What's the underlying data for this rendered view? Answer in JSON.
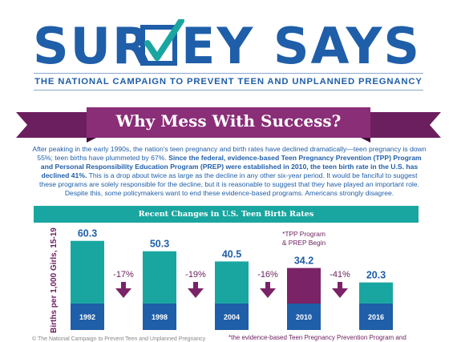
{
  "header": {
    "logo_left": "SUR",
    "logo_right": "EY SAYS",
    "subtitle": "THE NATIONAL CAMPAIGN TO PREVENT TEEN AND UNPLANNED PREGNANCY"
  },
  "banner": {
    "title": "Why Mess With Success?"
  },
  "paragraph": {
    "part1": "After peaking in the early 1990s, the nation's teen pregnancy and birth rates have declined dramatically—teen pregnancy is down 55%; teen births have plummeted by 67%.",
    "part2": "Since the federal, evidence-based Teen Pregnancy Prevention (TPP) Program and Personal Responsibility Education Program (PREP) were established in 2010, the teen birth rate in the U.S. has declined 41%.",
    "part3": "This is a drop about twice as large as the decline in any other six-year period.  It would be fanciful to suggest these programs are solely responsible for the decline, but it is reasonable to suggest that they have played an important role. Despite this, some policymakers want to end these evidence-based programs. Americans strongly disagree."
  },
  "chart_data": {
    "type": "bar",
    "title": "Recent Changes in U.S. Teen Birth Rates",
    "ylabel": "Births per 1,000 Girls, 15-19",
    "categories": [
      "1992",
      "1998",
      "2004",
      "2010",
      "2016"
    ],
    "values": [
      60.3,
      50.3,
      40.5,
      34.2,
      20.3
    ],
    "value_labels": [
      "60.3",
      "50.3",
      "40.5",
      "34.2",
      "20.3"
    ],
    "changes": [
      "-17%",
      "-19%",
      "-16%",
      "-41%"
    ],
    "annotation": "*TPP Program & PREP Begin",
    "annotation_lines": [
      "*TPP Program",
      "& PREP Begin"
    ],
    "highlight_category": "2010",
    "colors": {
      "bar": "#1aa6a0",
      "highlight": "#7b2367",
      "base": "#1f5ea8",
      "arrow": "#7b2367"
    }
  },
  "footer": {
    "left": "© The National Campaign to Prevent Teen and Unplanned Pregnancy",
    "right": "*the evidence-based Teen Pregnancy Prevention Program and"
  }
}
